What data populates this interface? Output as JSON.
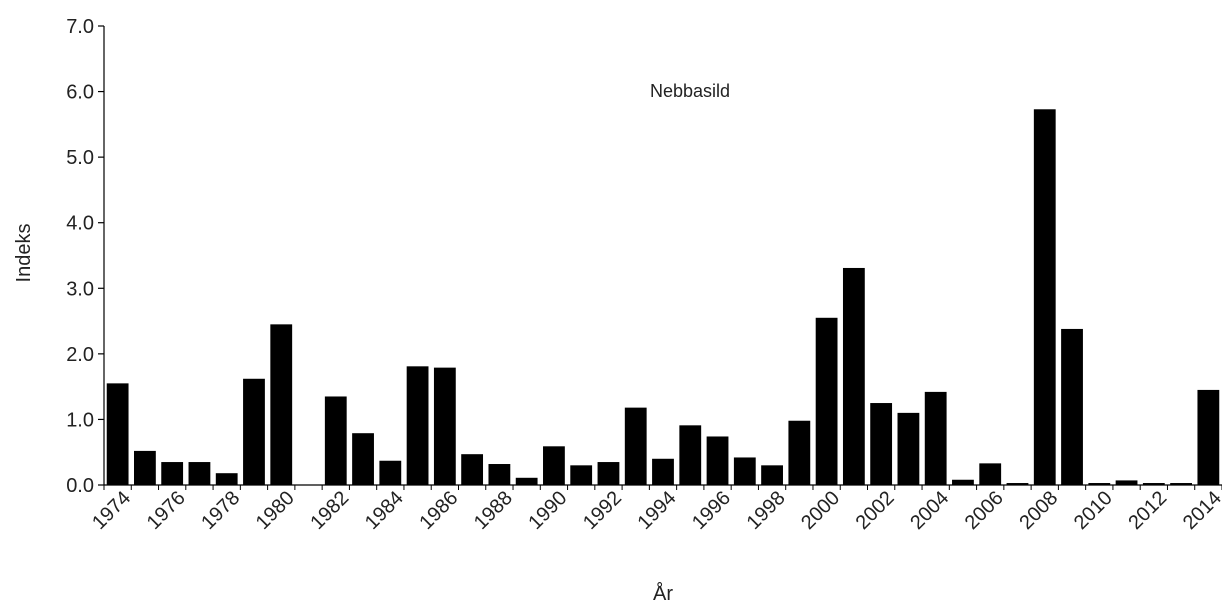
{
  "chart_data": {
    "type": "bar",
    "title": "Nebbasild",
    "xlabel": "År",
    "ylabel": "Indeks",
    "ylim": [
      0,
      7
    ],
    "yticks": [
      "0.0",
      "1.0",
      "2.0",
      "3.0",
      "4.0",
      "5.0",
      "6.0",
      "7.0"
    ],
    "grid": false,
    "categories": [
      "1974",
      "1975",
      "1976",
      "1977",
      "1978",
      "1979",
      "1980",
      "1981",
      "1982",
      "1983",
      "1984",
      "1985",
      "1986",
      "1987",
      "1988",
      "1989",
      "1990",
      "1991",
      "1992",
      "1993",
      "1994",
      "1995",
      "1996",
      "1997",
      "1998",
      "1999",
      "2000",
      "2001",
      "2002",
      "2003",
      "2004",
      "2005",
      "2006",
      "2007",
      "2008",
      "2009",
      "2010",
      "2011",
      "2012",
      "2013",
      "2014"
    ],
    "xtick_labels": [
      "1974",
      "1976",
      "1978",
      "1980",
      "1982",
      "1984",
      "1986",
      "1988",
      "1990",
      "1992",
      "1994",
      "1996",
      "1998",
      "2000",
      "2002",
      "2004",
      "2006",
      "2008",
      "2010",
      "2012",
      "2014"
    ],
    "values": [
      1.55,
      0.52,
      0.35,
      0.35,
      0.18,
      1.62,
      2.45,
      0.0,
      1.35,
      0.79,
      0.37,
      1.81,
      1.79,
      0.47,
      0.32,
      0.11,
      0.59,
      0.3,
      0.35,
      1.18,
      0.4,
      0.91,
      0.74,
      0.42,
      0.3,
      0.98,
      2.55,
      3.31,
      1.25,
      1.1,
      1.42,
      0.08,
      0.33,
      0.03,
      5.73,
      2.38,
      0.03,
      0.07,
      0.03,
      0.03,
      1.45
    ],
    "bar_color": "#000000",
    "axis_color": "#000000"
  }
}
